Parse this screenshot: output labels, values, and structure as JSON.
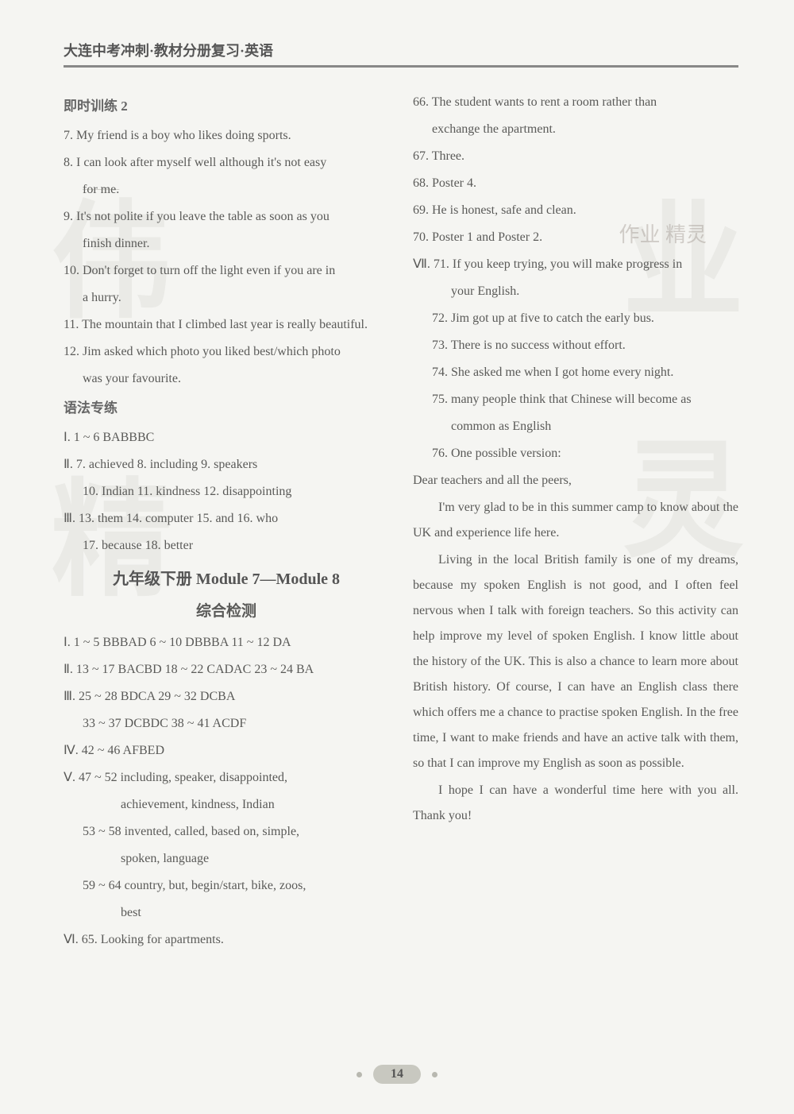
{
  "header": {
    "title": "大连中考冲刺·教材分册复习·英语"
  },
  "left": {
    "sec1_title": "即时训练 2",
    "q7": "7. My friend is a boy who likes doing sports.",
    "q8a": "8. I can look after myself well although it's not easy",
    "q8b": "for me.",
    "q9a": "9. It's not polite if you leave the table as soon as you",
    "q9b": "finish dinner.",
    "q10a": "10. Don't forget to turn off the light even if you are in",
    "q10b": "a hurry.",
    "q11": "11. The mountain that I climbed last year is really beautiful.",
    "q12a": "12. Jim asked which photo you liked best/which photo",
    "q12b": "was your favourite.",
    "sec2_title": "语法专练",
    "g1": "Ⅰ. 1 ~ 6 BABBBC",
    "g2": "Ⅱ. 7. achieved  8. including  9. speakers",
    "g3": "10. Indian  11. kindness  12. disappointing",
    "g4": "Ⅲ. 13. them  14. computer  15. and  16. who",
    "g5": "17. because  18. better",
    "module_heading": "九年级下册 Module 7—Module 8",
    "module_sub": "综合检测",
    "m1": "Ⅰ. 1 ~ 5 BBBAD  6 ~ 10 DBBBA  11 ~ 12 DA",
    "m2": "Ⅱ. 13 ~ 17 BACBD  18 ~ 22 CADAC  23 ~ 24 BA",
    "m3": "Ⅲ. 25 ~ 28 BDCA     29 ~ 32 DCBA",
    "m3b": "33 ~ 37 DCBDC  38 ~ 41 ACDF",
    "m4": "Ⅳ. 42 ~ 46 AFBED",
    "m5a": "Ⅴ. 47 ~ 52 including, speaker, disappointed,",
    "m5b": "achievement, kindness, Indian",
    "m5c": "53 ~ 58 invented, called, based on, simple,",
    "m5d": "spoken, language",
    "m5e": "59 ~ 64 country, but, begin/start, bike, zoos,",
    "m5f": "best",
    "m6": "Ⅵ. 65. Looking for apartments."
  },
  "right": {
    "q66a": "66. The student wants to rent a room rather than",
    "q66b": "exchange the apartment.",
    "q67": "67. Three.",
    "q68": "68. Poster 4.",
    "q69": "69. He is honest, safe and clean.",
    "q70": "70. Poster 1 and Poster 2.",
    "q71a": "Ⅶ. 71. If you keep trying, you will make progress in",
    "q71b": "your English.",
    "q72": "72. Jim got up at five to catch the early bus.",
    "q73": "73. There is no success without effort.",
    "q74": "74. She asked me when I got home every night.",
    "q75a": "75. many people think that Chinese will become as",
    "q75b": "common as English",
    "q76": "76. One possible version:",
    "e0": "Dear teachers and all the peers,",
    "e1": "I'm very glad to be in this summer camp to know about the UK and experience life here.",
    "e2": "Living in the local British family is one of my dreams, because my spoken English is not good, and I often feel nervous when I talk with foreign teachers. So this activity can help improve my level of spoken English. I know little about the history of the UK. This is also a chance to learn more about British history. Of course, I can have an English class there which offers me a chance to practise spoken English. In the free time, I want to make friends and have an active talk with them, so that I can improve my English as soon as possible.",
    "e3": "I hope I can have a wonderful time here with you all. Thank you!"
  },
  "page_number": "14",
  "watermarks": {
    "a": "伟",
    "b": "业",
    "c": "精",
    "d": "灵",
    "small": "作业\n精灵"
  },
  "colors": {
    "bg": "#f5f5f2",
    "text": "#5a5a58",
    "rule": "#888888",
    "bubble": "#c8c8c0",
    "wm": "rgba(140,140,130,0.10)"
  }
}
